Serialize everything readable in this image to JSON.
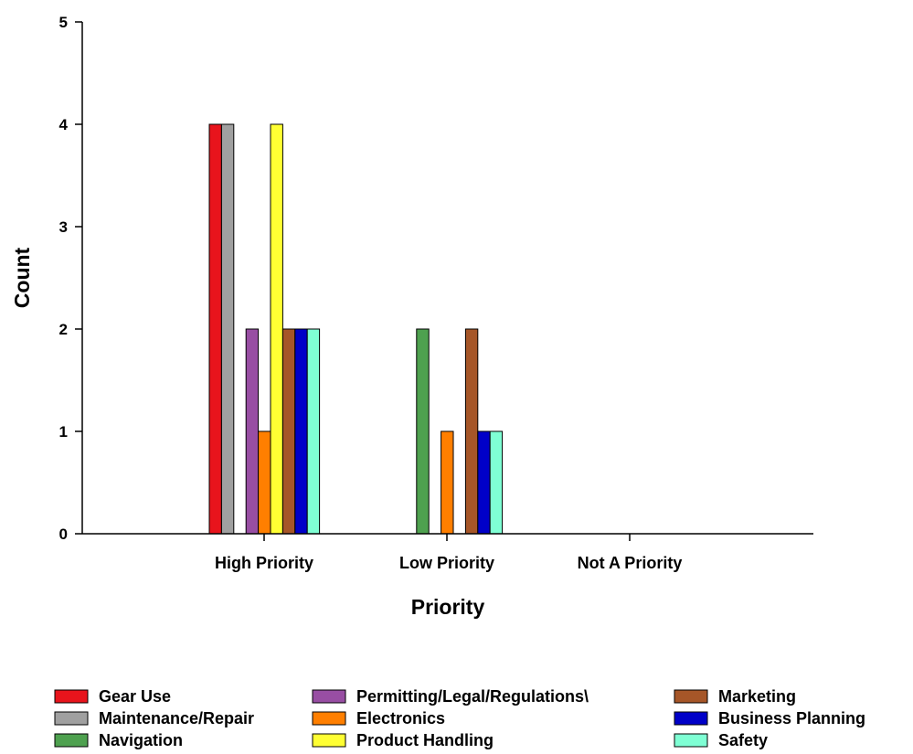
{
  "chart_data": {
    "type": "bar",
    "xlabel": "Priority",
    "ylabel": "Count",
    "ylim": [
      0,
      5
    ],
    "yticks": [
      0,
      1,
      2,
      3,
      4,
      5
    ],
    "categories": [
      "High Priority",
      "Low Priority",
      "Not A Priority"
    ],
    "grid": false,
    "legend_position": "bottom",
    "series": [
      {
        "name": "Gear Use",
        "color": "#e8141c",
        "values": [
          4,
          0,
          0
        ]
      },
      {
        "name": "Maintenance/Repair",
        "color": "#a0a0a0",
        "values": [
          4,
          0,
          0
        ]
      },
      {
        "name": "Navigation",
        "color": "#4ea14f",
        "values": [
          0,
          2,
          0
        ]
      },
      {
        "name": "Permitting/Legal/Regulations\\",
        "color": "#984ea3",
        "values": [
          2,
          0,
          0
        ]
      },
      {
        "name": "Electronics",
        "color": "#ff7f00",
        "values": [
          1,
          1,
          0
        ]
      },
      {
        "name": "Product Handling",
        "color": "#ffff33",
        "values": [
          4,
          0,
          0
        ]
      },
      {
        "name": "Marketing",
        "color": "#a65628",
        "values": [
          2,
          2,
          0
        ]
      },
      {
        "name": "Business Planning",
        "color": "#0000c8",
        "values": [
          2,
          1,
          0
        ]
      },
      {
        "name": "Safety",
        "color": "#7fffd4",
        "values": [
          2,
          1,
          0
        ]
      }
    ]
  }
}
